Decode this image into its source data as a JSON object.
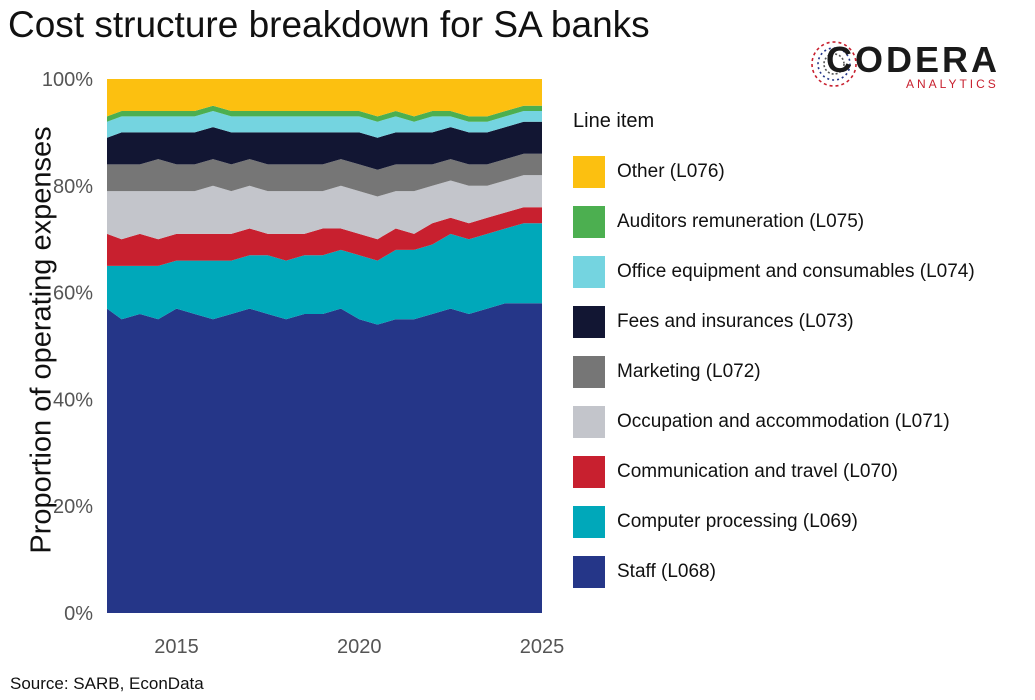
{
  "title": "Cost structure breakdown for SA banks",
  "source": "Source: SARB, EconData",
  "logo": {
    "name": "CODERA",
    "sub": "ANALYTICS"
  },
  "chart_data": {
    "type": "area",
    "stacked_percent": true,
    "ylabel": "Proportion of operating expenses",
    "xlabel": "",
    "xlim": [
      2013.1,
      2025.0
    ],
    "ylim": [
      0,
      100
    ],
    "x_ticks": [
      2015,
      2020,
      2025
    ],
    "y_ticks": [
      0,
      20,
      40,
      60,
      80,
      100
    ],
    "y_tick_labels": [
      "0%",
      "20%",
      "40%",
      "60%",
      "80%",
      "100%"
    ],
    "legend_title": "Line item",
    "legend_position": "right",
    "x": [
      2013.1,
      2013.5,
      2014.0,
      2014.5,
      2015.0,
      2015.5,
      2016.0,
      2016.5,
      2017.0,
      2017.5,
      2018.0,
      2018.5,
      2019.0,
      2019.5,
      2020.0,
      2020.5,
      2021.0,
      2021.5,
      2022.0,
      2022.5,
      2023.0,
      2023.5,
      2024.0,
      2024.5,
      2025.0
    ],
    "series": [
      {
        "name": "Staff (L068)",
        "color": "#253688",
        "values": [
          57,
          55,
          56,
          55,
          57,
          56,
          55,
          56,
          57,
          56,
          55,
          56,
          56,
          57,
          55,
          54,
          55,
          55,
          56,
          57,
          56,
          57,
          58,
          58,
          58
        ]
      },
      {
        "name": "Computer processing (L069)",
        "color": "#00A8BA",
        "values": [
          8,
          10,
          9,
          10,
          9,
          10,
          11,
          10,
          10,
          11,
          11,
          11,
          11,
          11,
          12,
          12,
          13,
          13,
          13,
          14,
          14,
          14,
          14,
          15,
          15
        ]
      },
      {
        "name": "Communication and travel (L070)",
        "color": "#C8202F",
        "values": [
          6,
          5,
          6,
          5,
          5,
          5,
          5,
          5,
          5,
          4,
          5,
          4,
          5,
          4,
          4,
          4,
          4,
          3,
          4,
          3,
          3,
          3,
          3,
          3,
          3
        ]
      },
      {
        "name": "Occupation and accommodation (L071)",
        "color": "#C3C5CB",
        "values": [
          8,
          9,
          8,
          9,
          8,
          8,
          9,
          8,
          8,
          8,
          8,
          8,
          7,
          8,
          8,
          8,
          7,
          8,
          7,
          7,
          7,
          6,
          6,
          6,
          6
        ]
      },
      {
        "name": "Marketing (L072)",
        "color": "#767676",
        "values": [
          5,
          5,
          5,
          6,
          5,
          5,
          5,
          5,
          5,
          5,
          5,
          5,
          5,
          5,
          5,
          5,
          5,
          5,
          4,
          4,
          4,
          4,
          4,
          4,
          4
        ]
      },
      {
        "name": "Fees and insurances (L073)",
        "color": "#121633",
        "values": [
          5,
          6,
          6,
          5,
          6,
          6,
          6,
          6,
          5,
          6,
          6,
          6,
          6,
          5,
          6,
          6,
          6,
          6,
          6,
          6,
          6,
          6,
          6,
          6,
          6
        ]
      },
      {
        "name": "Office equipment and consumables (L074)",
        "color": "#74D4E0",
        "values": [
          3,
          3,
          3,
          3,
          3,
          3,
          3,
          3,
          3,
          3,
          3,
          3,
          3,
          3,
          3,
          3,
          3,
          2,
          3,
          2,
          2,
          2,
          2,
          2,
          2
        ]
      },
      {
        "name": "Auditors remuneration (L075)",
        "color": "#4CAF50",
        "values": [
          1,
          1,
          1,
          1,
          1,
          1,
          1,
          1,
          1,
          1,
          1,
          1,
          1,
          1,
          1,
          1,
          1,
          1,
          1,
          1,
          1,
          1,
          1,
          1,
          1
        ]
      },
      {
        "name": "Other (L076)",
        "color": "#FCC010",
        "values": [
          7,
          6,
          6,
          6,
          6,
          6,
          5,
          6,
          6,
          6,
          6,
          6,
          6,
          6,
          6,
          7,
          6,
          7,
          6,
          6,
          7,
          7,
          6,
          5,
          5
        ]
      }
    ]
  }
}
